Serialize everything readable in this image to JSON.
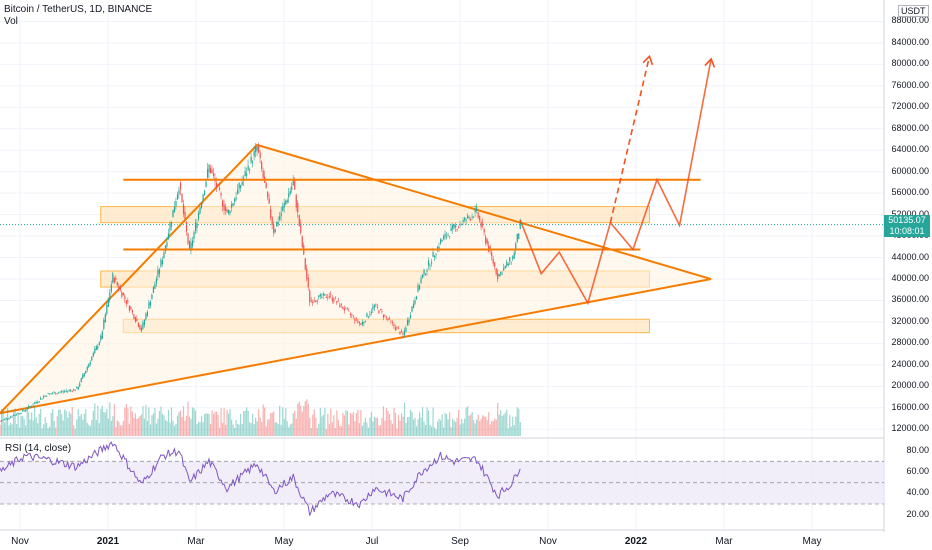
{
  "header": {
    "symbol_title": "Bitcoin / TetherUS, 1D, BINANCE",
    "volume_label": "Vol",
    "rsi_label": "RSI (14, close)"
  },
  "price_axis": {
    "unit": "USDT",
    "ticks": [
      "88000.00",
      "84000.00",
      "80000.00",
      "76000.00",
      "72000.00",
      "68000.00",
      "64000.00",
      "60000.00",
      "56000.00",
      "52000.00",
      "48000.00",
      "44000.00",
      "40000.00",
      "36000.00",
      "32000.00",
      "28000.00",
      "24000.00",
      "20000.00",
      "16000.00",
      "12000.00"
    ],
    "current_price": "50135.07",
    "countdown": "10:08:01"
  },
  "rsi_axis": {
    "ticks": [
      "80.00",
      "60.00",
      "40.00",
      "20.00"
    ]
  },
  "time_axis": {
    "labels": [
      "Nov",
      "2021",
      "Mar",
      "May",
      "Jul",
      "Sep",
      "Nov",
      "2022",
      "Mar",
      "May"
    ]
  },
  "colors": {
    "up": "#26a69a",
    "down": "#ef5350",
    "drawing": "#f57c00",
    "zone_fill": "#ffe0b2",
    "rsi_line": "#7e57c2",
    "rsi_band": "#ede7f6",
    "grid": "#f0f3fa"
  },
  "chart_data": {
    "type": "candlestick",
    "title": "Bitcoin / TetherUS, 1D, BINANCE",
    "y_unit": "USDT",
    "ylim": [
      10000,
      92000
    ],
    "grid": true,
    "x_range": [
      "2020-10-25",
      "2022-06-05"
    ],
    "price_path": [
      {
        "date": "2020-10-25",
        "close": 13500
      },
      {
        "date": "2020-11-10",
        "close": 15500
      },
      {
        "date": "2020-11-25",
        "close": 18500
      },
      {
        "date": "2020-12-15",
        "close": 19500
      },
      {
        "date": "2020-12-31",
        "close": 29000
      },
      {
        "date": "2021-01-08",
        "close": 40500
      },
      {
        "date": "2021-01-27",
        "close": 30500
      },
      {
        "date": "2021-02-10",
        "close": 44000
      },
      {
        "date": "2021-02-21",
        "close": 57500
      },
      {
        "date": "2021-02-28",
        "close": 45000
      },
      {
        "date": "2021-03-13",
        "close": 61000
      },
      {
        "date": "2021-03-25",
        "close": 52000
      },
      {
        "date": "2021-04-14",
        "close": 64500
      },
      {
        "date": "2021-04-25",
        "close": 49000
      },
      {
        "date": "2021-05-08",
        "close": 58000
      },
      {
        "date": "2021-05-19",
        "close": 36000
      },
      {
        "date": "2021-06-01",
        "close": 37000
      },
      {
        "date": "2021-06-22",
        "close": 31500
      },
      {
        "date": "2021-07-01",
        "close": 35000
      },
      {
        "date": "2021-07-20",
        "close": 29500
      },
      {
        "date": "2021-08-01",
        "close": 40000
      },
      {
        "date": "2021-08-14",
        "close": 47000
      },
      {
        "date": "2021-08-23",
        "close": 49500
      },
      {
        "date": "2021-09-07",
        "close": 52500
      },
      {
        "date": "2021-09-21",
        "close": 40500
      },
      {
        "date": "2021-10-01",
        "close": 44000
      },
      {
        "date": "2021-10-06",
        "close": 50135
      }
    ],
    "rsi": {
      "ylim": [
        15,
        90
      ],
      "bands": [
        30,
        70
      ],
      "path": [
        {
          "date": "2020-10-25",
          "value": 60
        },
        {
          "date": "2020-11-10",
          "value": 75
        },
        {
          "date": "2020-11-25",
          "value": 72
        },
        {
          "date": "2020-12-15",
          "value": 65
        },
        {
          "date": "2021-01-08",
          "value": 88
        },
        {
          "date": "2021-01-27",
          "value": 48
        },
        {
          "date": "2021-02-10",
          "value": 75
        },
        {
          "date": "2021-02-21",
          "value": 80
        },
        {
          "date": "2021-02-28",
          "value": 50
        },
        {
          "date": "2021-03-13",
          "value": 70
        },
        {
          "date": "2021-03-25",
          "value": 45
        },
        {
          "date": "2021-04-14",
          "value": 68
        },
        {
          "date": "2021-04-25",
          "value": 42
        },
        {
          "date": "2021-05-08",
          "value": 55
        },
        {
          "date": "2021-05-19",
          "value": 22
        },
        {
          "date": "2021-06-01",
          "value": 40
        },
        {
          "date": "2021-06-22",
          "value": 30
        },
        {
          "date": "2021-07-01",
          "value": 45
        },
        {
          "date": "2021-07-20",
          "value": 35
        },
        {
          "date": "2021-08-01",
          "value": 60
        },
        {
          "date": "2021-08-14",
          "value": 75
        },
        {
          "date": "2021-08-23",
          "value": 70
        },
        {
          "date": "2021-09-07",
          "value": 72
        },
        {
          "date": "2021-09-21",
          "value": 38
        },
        {
          "date": "2021-10-01",
          "value": 50
        },
        {
          "date": "2021-10-06",
          "value": 66
        }
      ]
    },
    "drawings": {
      "triangle": [
        {
          "date": "2020-10-25",
          "price": 15000
        },
        {
          "date": "2021-04-14",
          "price": 65000
        },
        {
          "date": "2022-02-10",
          "price": 40000
        }
      ],
      "horizontal_lines": [
        {
          "price": 58500,
          "from": "2021-01-15",
          "to": "2022-02-03"
        },
        {
          "price": 45500,
          "from": "2021-01-15",
          "to": "2021-12-25"
        }
      ],
      "zones": [
        {
          "top": 53500,
          "bottom": 50500,
          "from": "2020-12-31",
          "to": "2021-12-31"
        },
        {
          "top": 41500,
          "bottom": 38500,
          "from": "2020-12-31",
          "to": "2021-12-31"
        },
        {
          "top": 32500,
          "bottom": 30000,
          "from": "2021-01-15",
          "to": "2021-12-31"
        }
      ],
      "projection_main": [
        {
          "date": "2021-10-06",
          "price": 51000
        },
        {
          "date": "2021-10-20",
          "price": 41000
        },
        {
          "date": "2021-11-01",
          "price": 45000
        },
        {
          "date": "2021-11-20",
          "price": 35500
        },
        {
          "date": "2021-12-05",
          "price": 50500
        },
        {
          "date": "2021-12-20",
          "price": 45500
        },
        {
          "date": "2022-01-05",
          "price": 58500
        },
        {
          "date": "2022-01-20",
          "price": 50000
        },
        {
          "date": "2022-02-10",
          "price": 81000
        }
      ],
      "projection_dashed": [
        {
          "date": "2021-12-05",
          "price": 50500
        },
        {
          "date": "2021-12-31",
          "price": 81500
        }
      ]
    }
  }
}
